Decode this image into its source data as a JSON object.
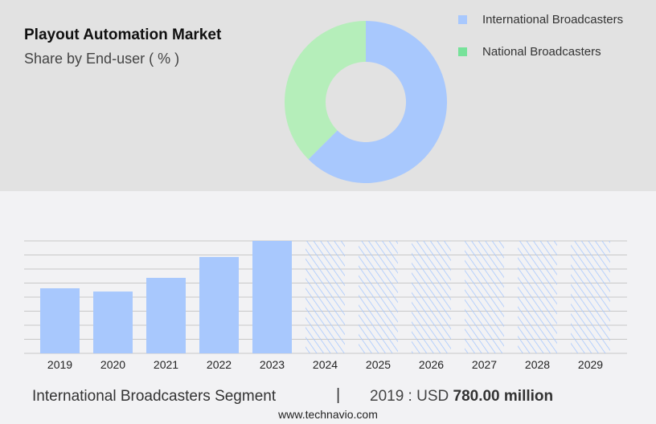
{
  "header": {
    "title": "Playout Automation Market",
    "subtitle": "Share by End-user ( % )"
  },
  "chart_data": [
    {
      "type": "pie",
      "donut": true,
      "legend": "top-right",
      "series": [
        {
          "name": "International Broadcasters",
          "value": 62.5,
          "color": "#a8c8fd"
        },
        {
          "name": "National Broadcasters",
          "value": 37.5,
          "color": "#b5eeba",
          "legend_color": "#77e29a"
        }
      ]
    },
    {
      "type": "bar",
      "categories": [
        "2019",
        "2020",
        "2021",
        "2022",
        "2023",
        "2024",
        "2025",
        "2026",
        "2027",
        "2028",
        "2029"
      ],
      "values": [
        780,
        741,
        905,
        1155,
        1348,
        null,
        null,
        null,
        null,
        null,
        null
      ],
      "forecast_categories": [
        "2024",
        "2025",
        "2026",
        "2027",
        "2028",
        "2029"
      ],
      "forecast_style": "hatched",
      "ylim": [
        0,
        1348
      ],
      "grid": true,
      "color": "#a8c8fd"
    }
  ],
  "footer": {
    "segment": "International Broadcasters Segment",
    "separator": "|",
    "value_prefix": "2019 : USD ",
    "value": "780.00 million",
    "website": "www.technavio.com"
  }
}
